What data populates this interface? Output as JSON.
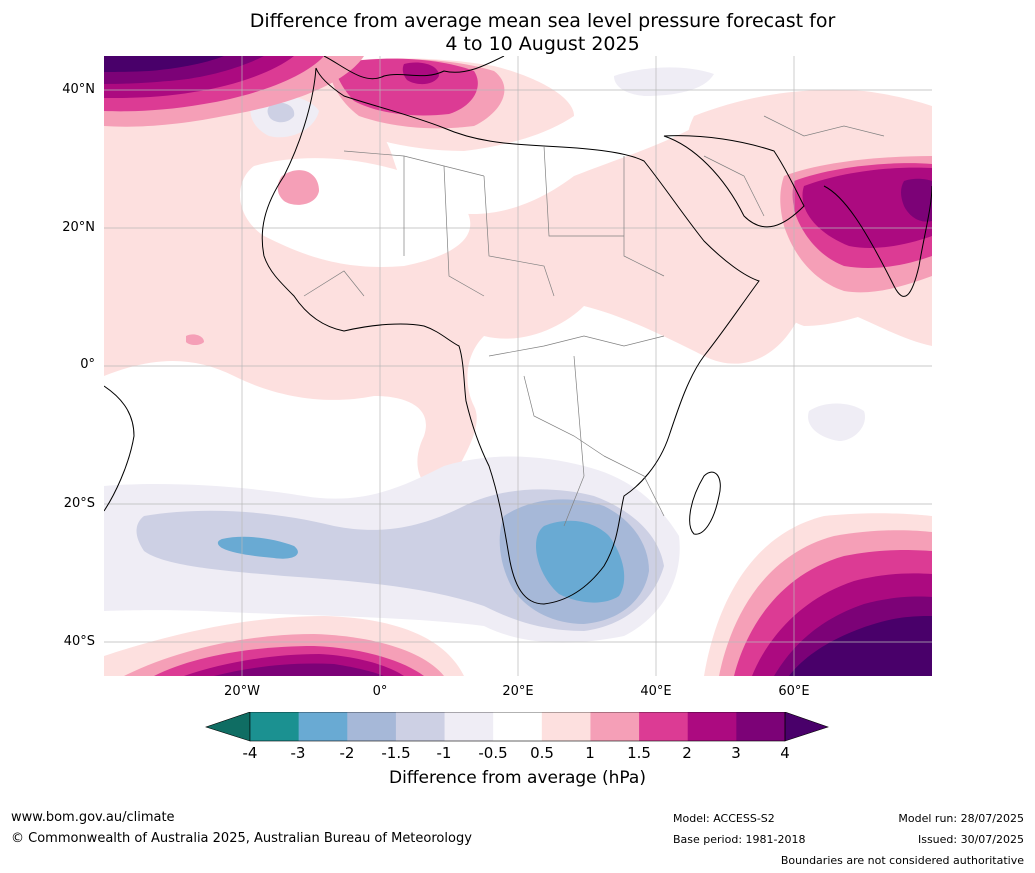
{
  "title": {
    "line1": "Difference from average mean sea level pressure forecast for",
    "line2": "4 to 10 August 2025"
  },
  "map": {
    "lat_ticks": [
      "40°N",
      "20°N",
      "0°",
      "20°S",
      "40°S"
    ],
    "lon_ticks": [
      "20°W",
      "0°",
      "20°E",
      "40°E",
      "60°E"
    ]
  },
  "colorbar": {
    "labels": [
      "-4",
      "-3",
      "-2",
      "-1.5",
      "-1",
      "-0.5",
      "0.5",
      "1",
      "1.5",
      "2",
      "3",
      "4"
    ],
    "colors": [
      "#1b9191",
      "#69aad3",
      "#a6b8d8",
      "#cdd0e4",
      "#efedf5",
      "#ffffff",
      "#fde0df",
      "#f59fb7",
      "#dc3b94",
      "#ac0a80",
      "#7c0277"
    ],
    "under_color": "#0f6d63",
    "over_color": "#49006a",
    "title": "Difference from average (hPa)"
  },
  "footer": {
    "url": "www.bom.gov.au/climate",
    "copyright": "© Commonwealth of Australia 2025, Australian Bureau of Meteorology",
    "model": "Model: ACCESS-S2",
    "base_period": "Base period: 1981-2018",
    "model_run": "Model run: 28/07/2025",
    "issued": "Issued: 30/07/2025",
    "disclaimer": "Boundaries are not considered authoritative"
  }
}
